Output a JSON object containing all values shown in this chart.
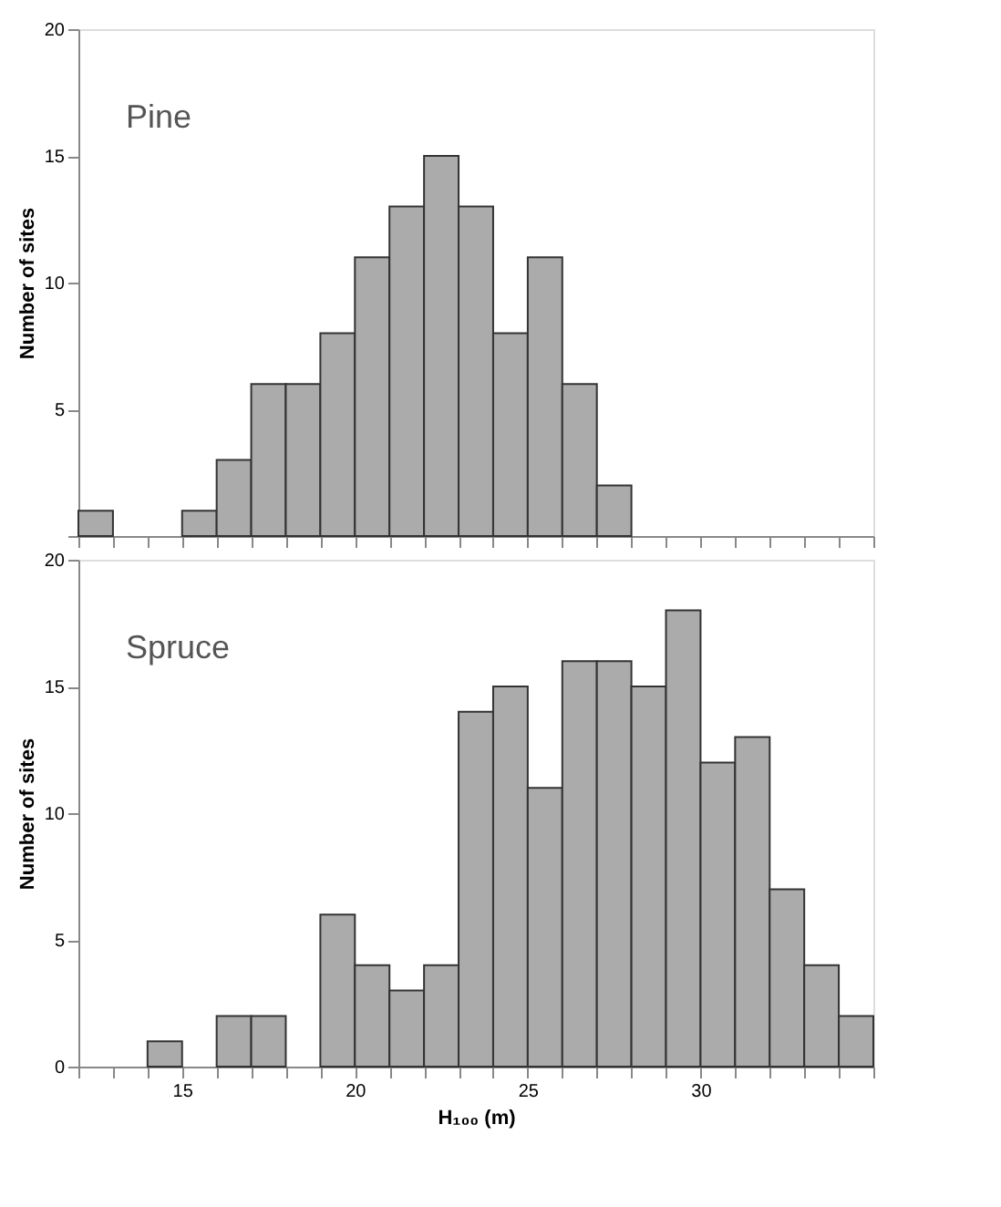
{
  "chart_data": [
    {
      "type": "histogram",
      "title": "Pine",
      "ylabel": "Number of sites",
      "bins": [
        12,
        13,
        14,
        15,
        16,
        17,
        18,
        19,
        20,
        21,
        22,
        23,
        24,
        25,
        26,
        27,
        28
      ],
      "values": [
        1,
        0,
        0,
        1,
        3,
        6,
        6,
        8,
        11,
        13,
        15,
        13,
        8,
        11,
        6,
        2
      ],
      "color": "#ababab",
      "xlim": [
        12,
        35
      ],
      "xticks": [
        {
          "value": 12,
          "label": null
        },
        {
          "value": 13,
          "label": null
        },
        {
          "value": 14,
          "label": null
        },
        {
          "value": 15,
          "label": null
        },
        {
          "value": 16,
          "label": null
        },
        {
          "value": 17,
          "label": null
        },
        {
          "value": 18,
          "label": null
        },
        {
          "value": 19,
          "label": null
        },
        {
          "value": 20,
          "label": null
        },
        {
          "value": 21,
          "label": null
        },
        {
          "value": 22,
          "label": null
        },
        {
          "value": 23,
          "label": null
        },
        {
          "value": 24,
          "label": null
        },
        {
          "value": 25,
          "label": null
        },
        {
          "value": 26,
          "label": null
        },
        {
          "value": 27,
          "label": null
        },
        {
          "value": 28,
          "label": null
        },
        {
          "value": 29,
          "label": null
        },
        {
          "value": 30,
          "label": null
        },
        {
          "value": 31,
          "label": null
        },
        {
          "value": 32,
          "label": null
        },
        {
          "value": 33,
          "label": null
        },
        {
          "value": 34,
          "label": null
        },
        {
          "value": 35,
          "label": null
        }
      ],
      "ylim": [
        0,
        20
      ],
      "yticks": [
        {
          "value": 0,
          "label": null
        },
        5,
        10,
        15,
        20
      ],
      "tick_labels": "y",
      "grid": false
    },
    {
      "type": "histogram",
      "title": "Spruce",
      "ylabel": "Number of sites",
      "xlabel": "H₁₀₀ (m)",
      "bins": [
        12,
        13,
        14,
        15,
        16,
        17,
        18,
        19,
        20,
        21,
        22,
        23,
        24,
        25,
        26,
        27,
        28,
        29,
        30,
        31,
        32,
        33,
        34,
        35
      ],
      "values": [
        0,
        0,
        1,
        0,
        2,
        2,
        0,
        6,
        4,
        3,
        4,
        14,
        15,
        11,
        16,
        16,
        15,
        18,
        12,
        13,
        7,
        4,
        2
      ],
      "color": "#ababab",
      "xlim": [
        12,
        35
      ],
      "xticks": [
        {
          "value": 12,
          "label": null
        },
        {
          "value": 13,
          "label": null
        },
        {
          "value": 14,
          "label": null
        },
        15,
        {
          "value": 16,
          "label": null
        },
        {
          "value": 17,
          "label": null
        },
        {
          "value": 18,
          "label": null
        },
        {
          "value": 19,
          "label": null
        },
        20,
        {
          "value": 21,
          "label": null
        },
        {
          "value": 22,
          "label": null
        },
        {
          "value": 23,
          "label": null
        },
        {
          "value": 24,
          "label": null
        },
        25,
        {
          "value": 26,
          "label": null
        },
        {
          "value": 27,
          "label": null
        },
        {
          "value": 28,
          "label": null
        },
        {
          "value": 29,
          "label": null
        },
        30,
        {
          "value": 31,
          "label": null
        },
        {
          "value": 32,
          "label": null
        },
        {
          "value": 33,
          "label": null
        },
        {
          "value": 34,
          "label": null
        },
        {
          "value": 35,
          "label": null
        }
      ],
      "ylim": [
        0,
        20
      ],
      "yticks": [
        0,
        5,
        10,
        15,
        20
      ],
      "grid": false
    }
  ]
}
